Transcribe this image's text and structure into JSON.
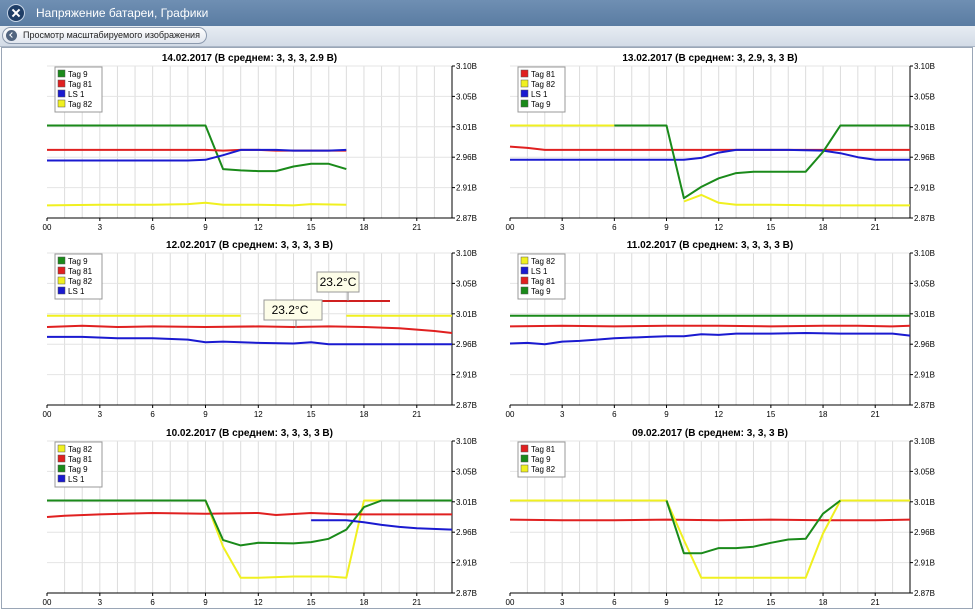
{
  "window": {
    "title": "Напряжение батареи, Графики"
  },
  "toolbar": {
    "back_label": "Просмотр масштабируемого изображения"
  },
  "tooltips": [
    "23.2°C",
    "23.2°C"
  ],
  "colors": {
    "Tag 9": "#1a8a1a",
    "Tag 81": "#e02020",
    "LS 1": "#1a1ad0",
    "Tag 82": "#f0f020"
  },
  "chart_data": [
    {
      "type": "line",
      "title": "14.02.2017 (В среднем: 3, 3, 3, 2.9 В)",
      "legend": [
        "Tag 9",
        "Tag 81",
        "LS 1",
        "Tag 82"
      ],
      "legend_position": "top-left",
      "grid": true,
      "xlim": [
        0,
        23
      ],
      "ylim": [
        2.87,
        3.1
      ],
      "x_ticks": [
        "00",
        "3",
        "6",
        "9",
        "12",
        "15",
        "18",
        "21"
      ],
      "y_ticks": [
        "3.10В",
        "3.05В",
        "3.01В",
        "2.96В",
        "2.91В",
        "2.87В"
      ],
      "series": [
        {
          "name": "Tag 9",
          "x": [
            0,
            9,
            10,
            11,
            12,
            13,
            14,
            15,
            16,
            17
          ],
          "y": [
            3.01,
            3.01,
            2.944,
            2.942,
            2.941,
            2.941,
            2.948,
            2.952,
            2.952,
            2.944
          ]
        },
        {
          "name": "Tag 81",
          "x": [
            0,
            9,
            10,
            11,
            12,
            13,
            14,
            15,
            16,
            17
          ],
          "y": [
            2.973,
            2.973,
            2.972,
            2.973,
            2.973,
            2.972,
            2.972,
            2.972,
            2.972,
            2.972
          ]
        },
        {
          "name": "LS 1",
          "x": [
            0,
            8,
            9,
            10,
            11,
            12,
            13,
            14,
            15,
            16,
            17
          ],
          "y": [
            2.957,
            2.957,
            2.958,
            2.965,
            2.973,
            2.973,
            2.973,
            2.972,
            2.972,
            2.972,
            2.973
          ]
        },
        {
          "name": "Tag 82",
          "x": [
            0,
            3,
            6,
            8,
            9,
            10,
            12,
            14,
            15,
            17
          ],
          "y": [
            2.889,
            2.89,
            2.89,
            2.891,
            2.893,
            2.89,
            2.89,
            2.889,
            2.891,
            2.89
          ]
        }
      ]
    },
    {
      "type": "line",
      "title": "13.02.2017 (В среднем: 3, 2.9, 3, 3 В)",
      "legend": [
        "Tag 81",
        "Tag 82",
        "LS 1",
        "Tag 9"
      ],
      "legend_position": "top-left",
      "grid": true,
      "xlim": [
        0,
        23
      ],
      "ylim": [
        2.87,
        3.1
      ],
      "x_ticks": [
        "00",
        "3",
        "6",
        "9",
        "12",
        "15",
        "18",
        "21"
      ],
      "y_ticks": [
        "3.10В",
        "3.05В",
        "3.01В",
        "2.96В",
        "2.91В",
        "2.87В"
      ],
      "series": [
        {
          "name": "Tag 81",
          "x": [
            0,
            1,
            2,
            4,
            8,
            12,
            16,
            20,
            23
          ],
          "y": [
            2.978,
            2.976,
            2.973,
            2.973,
            2.973,
            2.973,
            2.973,
            2.973,
            2.973
          ]
        },
        {
          "name": "Tag 82",
          "x": [
            0,
            6,
            6,
            9,
            10,
            11,
            12,
            13,
            15,
            18,
            20,
            23
          ],
          "y": [
            3.01,
            3.01,
            null,
            null,
            2.895,
            2.905,
            2.893,
            2.89,
            2.89,
            2.889,
            2.889,
            2.889
          ]
        },
        {
          "name": "LS 1",
          "x": [
            0,
            10,
            11,
            12,
            13,
            16,
            18,
            19,
            20,
            21,
            23
          ],
          "y": [
            2.958,
            2.958,
            2.961,
            2.969,
            2.973,
            2.973,
            2.972,
            2.968,
            2.962,
            2.958,
            2.958
          ]
        },
        {
          "name": "Tag 9",
          "x": [
            6,
            9,
            10,
            11,
            12,
            13,
            14,
            17,
            18,
            19,
            23
          ],
          "y": [
            3.01,
            3.01,
            2.9,
            2.917,
            2.93,
            2.938,
            2.94,
            2.94,
            2.97,
            3.01,
            3.01
          ]
        }
      ]
    },
    {
      "type": "line",
      "title": "12.02.2017 (В среднем: 3, 3, 3, 3 В)",
      "legend": [
        "Tag 9",
        "Tag 81",
        "Tag 82",
        "LS 1"
      ],
      "legend_position": "top-left",
      "grid": true,
      "xlim": [
        0,
        23
      ],
      "ylim": [
        2.87,
        3.1
      ],
      "x_ticks": [
        "00",
        "3",
        "6",
        "9",
        "12",
        "15",
        "18",
        "21"
      ],
      "y_ticks": [
        "3.10В",
        "3.05В",
        "3.01В",
        "2.96В",
        "2.91В",
        "2.87В"
      ],
      "series": [
        {
          "name": "Tag 82",
          "x": [
            0,
            6,
            11,
            11.5,
            16,
            17,
            20,
            23
          ],
          "y": [
            3.005,
            3.005,
            3.005,
            null,
            null,
            3.005,
            3.005,
            3.005
          ]
        },
        {
          "name": "Tag 81",
          "x": [
            0,
            2,
            4,
            6,
            9,
            12,
            14,
            16,
            18,
            20,
            22,
            23
          ],
          "y": [
            2.988,
            2.99,
            2.988,
            2.989,
            2.988,
            2.989,
            2.988,
            2.989,
            2.988,
            2.986,
            2.982,
            2.979
          ]
        },
        {
          "name": "LS 1",
          "x": [
            0,
            2,
            4,
            6,
            8,
            9,
            10,
            12,
            14,
            15,
            16,
            18,
            20,
            23
          ],
          "y": [
            2.973,
            2.973,
            2.971,
            2.971,
            2.969,
            2.965,
            2.966,
            2.964,
            2.963,
            2.965,
            2.962,
            2.962,
            2.962,
            2.962
          ]
        }
      ]
    },
    {
      "type": "line",
      "title": "11.02.2017 (В среднем: 3, 3, 3, 3 В)",
      "legend": [
        "Tag 82",
        "LS 1",
        "Tag 81",
        "Tag 9"
      ],
      "legend_position": "top-left",
      "grid": true,
      "xlim": [
        0,
        23
      ],
      "ylim": [
        2.87,
        3.1
      ],
      "x_ticks": [
        "00",
        "3",
        "6",
        "9",
        "12",
        "15",
        "18",
        "21"
      ],
      "y_ticks": [
        "3.10В",
        "3.05В",
        "3.01В",
        "2.96В",
        "2.91В",
        "2.87В"
      ],
      "series": [
        {
          "name": "Tag 9",
          "x": [
            0,
            23
          ],
          "y": [
            3.005,
            3.005
          ]
        },
        {
          "name": "Tag 81",
          "x": [
            0,
            3,
            6,
            9,
            12,
            15,
            18,
            20,
            22,
            23
          ],
          "y": [
            2.989,
            2.99,
            2.989,
            2.99,
            2.99,
            2.989,
            2.99,
            2.99,
            2.989,
            2.99
          ]
        },
        {
          "name": "LS 1",
          "x": [
            0,
            1,
            2,
            3,
            4,
            5,
            6,
            8,
            9,
            10,
            11,
            12,
            13,
            15,
            17,
            19,
            21,
            22,
            23
          ],
          "y": [
            2.963,
            2.964,
            2.962,
            2.966,
            2.967,
            2.969,
            2.971,
            2.973,
            2.974,
            2.974,
            2.977,
            2.976,
            2.978,
            2.978,
            2.979,
            2.978,
            2.978,
            2.978,
            2.975
          ]
        }
      ]
    },
    {
      "type": "line",
      "title": "10.02.2017 (В среднем: 3, 3, 3, 3 В)",
      "legend": [
        "Tag 82",
        "Tag 81",
        "Tag 9",
        "LS 1"
      ],
      "legend_position": "top-left",
      "grid": true,
      "xlim": [
        0,
        23
      ],
      "ylim": [
        2.87,
        3.1
      ],
      "x_ticks": [
        "00",
        "3",
        "6",
        "9",
        "12",
        "15",
        "18",
        "21"
      ],
      "y_ticks": [
        "3.10В",
        "3.05В",
        "3.01В",
        "2.96В",
        "2.91В",
        "2.87В"
      ],
      "series": [
        {
          "name": "Tag 82",
          "x": [
            0,
            9,
            10,
            11,
            12,
            14,
            16,
            17,
            18,
            23
          ],
          "y": [
            3.01,
            3.01,
            2.94,
            2.893,
            2.893,
            2.895,
            2.895,
            2.893,
            3.01,
            3.01
          ]
        },
        {
          "name": "Tag 81",
          "x": [
            0,
            1,
            3,
            6,
            9,
            12,
            13,
            15,
            17,
            18,
            20,
            23
          ],
          "y": [
            2.985,
            2.987,
            2.989,
            2.991,
            2.99,
            2.991,
            2.988,
            2.991,
            2.989,
            2.989,
            2.989,
            2.989
          ]
        },
        {
          "name": "Tag 9",
          "x": [
            0,
            9,
            10,
            11,
            12,
            14,
            15,
            16,
            17,
            18,
            19,
            23
          ],
          "y": [
            3.01,
            3.01,
            2.95,
            2.942,
            2.946,
            2.945,
            2.947,
            2.952,
            2.966,
            3.0,
            3.01,
            3.01
          ]
        },
        {
          "name": "LS 1",
          "x": [
            15,
            17,
            18,
            19,
            20,
            21,
            23
          ],
          "y": [
            2.98,
            2.98,
            2.977,
            2.973,
            2.97,
            2.968,
            2.966
          ]
        }
      ]
    },
    {
      "type": "line",
      "title": "09.02.2017 (В среднем: 3, 3, 3 В)",
      "legend": [
        "Tag 81",
        "Tag 9",
        "Tag 82"
      ],
      "legend_position": "top-left",
      "grid": true,
      "xlim": [
        0,
        23
      ],
      "ylim": [
        2.87,
        3.1
      ],
      "x_ticks": [
        "00",
        "3",
        "6",
        "9",
        "12",
        "15",
        "18",
        "21"
      ],
      "y_ticks": [
        "3.10В",
        "3.05В",
        "3.01В",
        "2.96В",
        "2.91В",
        "2.87В"
      ],
      "series": [
        {
          "name": "Tag 81",
          "x": [
            0,
            3,
            6,
            9,
            12,
            15,
            18,
            21,
            23
          ],
          "y": [
            2.981,
            2.98,
            2.98,
            2.981,
            2.98,
            2.981,
            2.98,
            2.98,
            2.981
          ]
        },
        {
          "name": "Tag 82",
          "x": [
            0,
            9,
            10,
            11,
            12,
            13,
            15,
            16,
            17,
            18,
            19,
            23
          ],
          "y": [
            3.01,
            3.01,
            2.95,
            2.893,
            2.893,
            2.893,
            2.893,
            2.893,
            2.893,
            2.96,
            3.01,
            3.01
          ]
        },
        {
          "name": "Tag 9",
          "x": [
            9,
            10,
            11,
            12,
            13,
            14,
            15,
            16,
            17,
            18,
            19
          ],
          "y": [
            3.01,
            2.93,
            2.93,
            2.938,
            2.938,
            2.94,
            2.946,
            2.951,
            2.952,
            2.99,
            3.01
          ]
        }
      ]
    }
  ]
}
